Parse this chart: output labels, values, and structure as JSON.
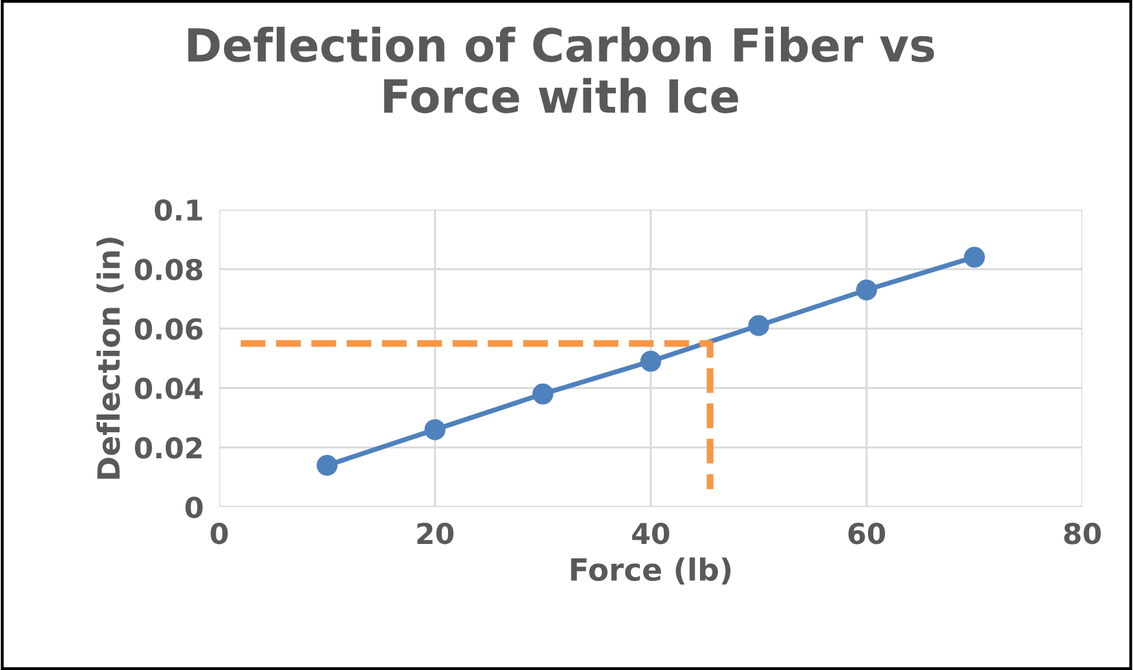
{
  "chart_data": {
    "type": "line",
    "title": "Deflection of Carbon Fiber vs\nForce with Ice",
    "xlabel": "Force (lb)",
    "ylabel": "Deflection (in)",
    "series": [
      {
        "x": [
          10,
          20,
          30,
          40,
          50,
          60,
          70
        ],
        "values": [
          0.014,
          0.026,
          0.038,
          0.049,
          0.061,
          0.073,
          0.084
        ],
        "color": "#4f81bd",
        "marker": "circle",
        "line_style": "solid"
      },
      {
        "x": [
          2,
          45.5,
          45.5
        ],
        "values": [
          0.055,
          0.055,
          0.006
        ],
        "color": "#f79646",
        "marker": "none",
        "line_style": "dashed"
      }
    ],
    "xlim": [
      0,
      80
    ],
    "xticks": [
      0,
      20,
      40,
      60,
      80
    ],
    "ylim": [
      0,
      0.1
    ],
    "yticks": [
      0,
      0.02,
      0.04,
      0.06,
      0.08,
      0.1
    ],
    "grid": true,
    "legend": false
  }
}
